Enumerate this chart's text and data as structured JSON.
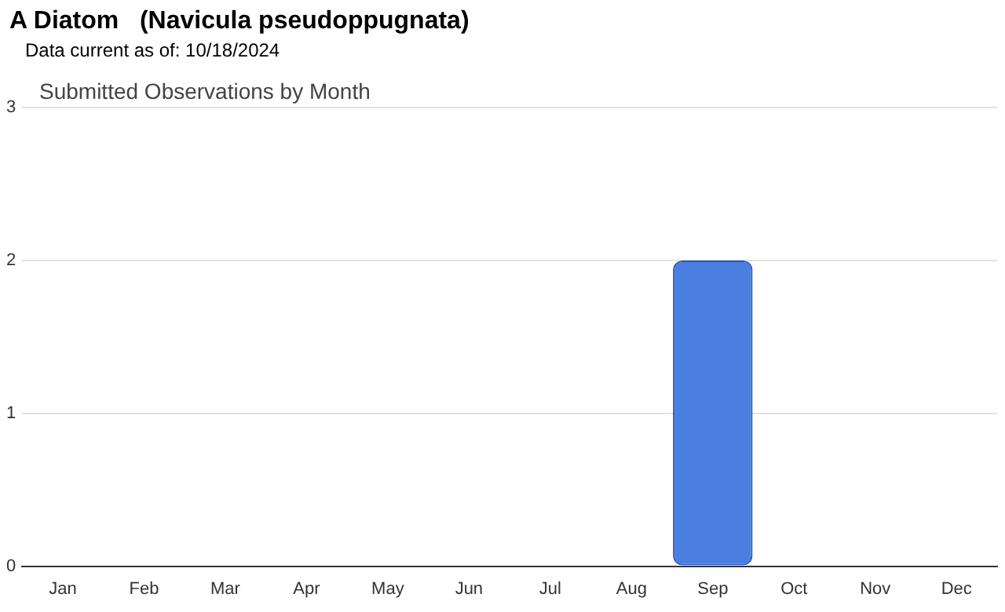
{
  "chart_data": {
    "type": "bar",
    "title": "A Diatom   (Navicula pseudoppugnata)",
    "subtitle": "Data current as of: 10/18/2024",
    "annotations": [
      "Submitted Observations by Month"
    ],
    "categories": [
      "Jan",
      "Feb",
      "Mar",
      "Apr",
      "May",
      "Jun",
      "Jul",
      "Aug",
      "Sep",
      "Oct",
      "Nov",
      "Dec"
    ],
    "values": [
      0,
      0,
      0,
      0,
      0,
      0,
      0,
      0,
      2,
      0,
      0,
      0
    ],
    "color": "#4a7fe0",
    "ylim": [
      0,
      3
    ],
    "yticks": [
      0,
      1,
      2,
      3
    ],
    "grid": "y",
    "legend": false
  }
}
